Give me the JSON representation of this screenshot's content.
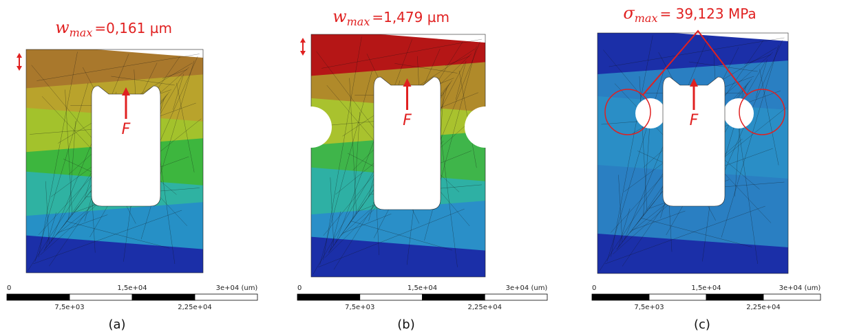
{
  "panels": [
    {
      "annotation": {
        "symbol": "w",
        "subscript": "max",
        "value": "=0,161 µm"
      },
      "force_label": "F",
      "scale": {
        "top": [
          "0",
          "1,5e+04",
          "3e+04 (um)"
        ],
        "bottom": [
          "7,5e+03",
          "2,25e+04"
        ]
      },
      "caption": "(a)"
    },
    {
      "annotation": {
        "symbol": "w",
        "subscript": "max",
        "value": "=1,479 µm"
      },
      "force_label": "F",
      "scale": {
        "top": [
          "0",
          "1,5e+04",
          "3e+04 (um)"
        ],
        "bottom": [
          "7,5e+03",
          "2,25e+04"
        ]
      },
      "caption": "(b)"
    },
    {
      "annotation": {
        "symbol": "σ",
        "subscript": "max",
        "value": "= 39,123 MPa"
      },
      "force_label": "F",
      "scale": {
        "top": [
          "0",
          "1,5e+04",
          "3e+04 (um)"
        ],
        "bottom": [
          "7,5e+03",
          "2,25e+04"
        ]
      },
      "caption": "(c)"
    }
  ]
}
